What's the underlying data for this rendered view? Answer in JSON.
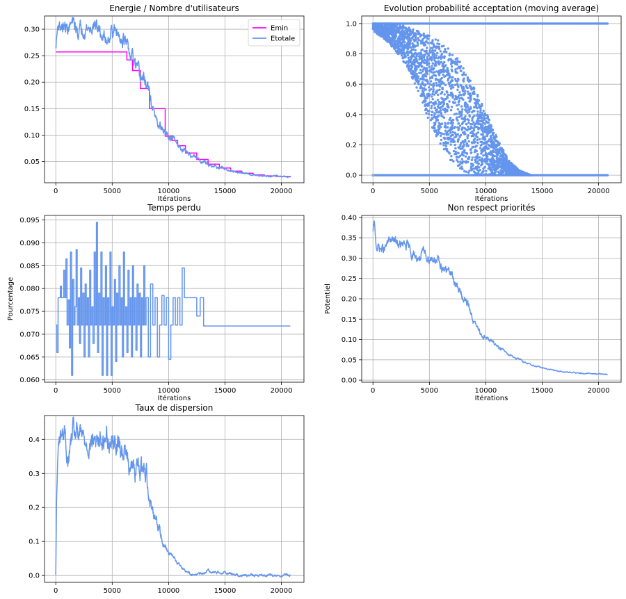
{
  "colors": {
    "emin": "#ff00ff",
    "etotale": "#6495ed",
    "series": "#6495ed",
    "grid": "#b0b0b0",
    "axes": "#000000"
  },
  "chart_data": [
    {
      "id": "energie",
      "type": "line",
      "title": "Energie / Nombre d'utilisateurs",
      "xlabel": "Itérations",
      "ylabel": "",
      "xlim": [
        -1000,
        22000
      ],
      "ylim": [
        0.01,
        0.325
      ],
      "xticks": [
        0,
        5000,
        10000,
        15000,
        20000
      ],
      "xtick_labels": [
        "0",
        "5000",
        "10000",
        "15000",
        "20000"
      ],
      "yticks": [
        0.05,
        0.1,
        0.15,
        0.2,
        0.25,
        0.3
      ],
      "ytick_labels": [
        "0.05",
        "0.10",
        "0.15",
        "0.20",
        "0.25",
        "0.30"
      ],
      "grid": true,
      "legend": "top-right",
      "legend_entries": [
        "Emin",
        "Etotale"
      ],
      "series": [
        {
          "name": "Emin",
          "color_key": "emin",
          "step": true,
          "x": [
            0,
            6200,
            6300,
            6800,
            7500,
            8300,
            9700,
            10300,
            10800,
            11500,
            12500,
            13500,
            14500,
            15500,
            16500,
            17500,
            18500,
            19500,
            20800
          ],
          "y": [
            0.257,
            0.257,
            0.242,
            0.222,
            0.188,
            0.15,
            0.098,
            0.09,
            0.08,
            0.066,
            0.054,
            0.045,
            0.038,
            0.032,
            0.028,
            0.025,
            0.023,
            0.022,
            0.021
          ]
        },
        {
          "name": "Etotale",
          "color_key": "etotale",
          "step": false,
          "noise": 0.009,
          "x": [
            0,
            200,
            500,
            1000,
            1500,
            2000,
            2500,
            3000,
            3500,
            4000,
            4500,
            5000,
            5500,
            6000,
            6300,
            6600,
            6900,
            7200,
            7500,
            7800,
            8100,
            8400,
            8700,
            9000,
            9300,
            9600,
            10000,
            10500,
            11000,
            12000,
            13000,
            14000,
            15000,
            16000,
            17000,
            18000,
            19000,
            20000,
            20800
          ],
          "y": [
            0.265,
            0.31,
            0.305,
            0.3,
            0.31,
            0.295,
            0.305,
            0.3,
            0.31,
            0.29,
            0.28,
            0.3,
            0.29,
            0.285,
            0.265,
            0.25,
            0.24,
            0.22,
            0.21,
            0.205,
            0.195,
            0.17,
            0.14,
            0.12,
            0.115,
            0.105,
            0.097,
            0.09,
            0.078,
            0.062,
            0.05,
            0.042,
            0.035,
            0.03,
            0.027,
            0.024,
            0.023,
            0.022,
            0.021
          ]
        }
      ]
    },
    {
      "id": "acceptation",
      "type": "scatter",
      "title": "Evolution probabilité acceptation (moving average)",
      "xlabel": "Itérations",
      "ylabel": "",
      "xlim": [
        -1000,
        22000
      ],
      "ylim": [
        -0.05,
        1.05
      ],
      "xticks": [
        0,
        5000,
        10000,
        15000,
        20000
      ],
      "xtick_labels": [
        "0",
        "5000",
        "10000",
        "15000",
        "20000"
      ],
      "yticks": [
        0.0,
        0.2,
        0.4,
        0.6,
        0.8,
        1.0
      ],
      "ytick_labels": [
        "0.0",
        "0.2",
        "0.4",
        "0.6",
        "0.8",
        "1.0"
      ],
      "grid": true,
      "lower_band_x": [
        0,
        1000,
        2000,
        3000,
        4000,
        5000,
        6000,
        7000,
        8000,
        9000,
        10000,
        11000,
        12000,
        13000
      ],
      "lower_band_y": [
        0.95,
        0.9,
        0.82,
        0.72,
        0.55,
        0.35,
        0.2,
        0.08,
        0.02,
        0.0,
        0.0,
        0.0,
        0.0,
        0.0
      ],
      "upper_band_x": [
        0,
        1000,
        2000,
        3000,
        4000,
        5000,
        6000,
        7000,
        8000,
        9000,
        10000,
        11000,
        12000,
        13000,
        14000
      ],
      "upper_band_y": [
        1.0,
        1.0,
        1.0,
        0.98,
        0.95,
        0.92,
        0.88,
        0.82,
        0.72,
        0.58,
        0.42,
        0.25,
        0.1,
        0.03,
        0.0
      ],
      "ones_line": {
        "y": 1.0,
        "x_from": 0,
        "x_to": 20800
      },
      "zeros_line": {
        "y": 0.0,
        "x_from": 0,
        "x_to": 20800
      }
    },
    {
      "id": "temps",
      "type": "line",
      "title": "Temps perdu",
      "xlabel": "Itérations",
      "ylabel": "Pourcentage",
      "xlim": [
        -1000,
        22000
      ],
      "ylim": [
        0.0595,
        0.096
      ],
      "xticks": [
        0,
        5000,
        10000,
        15000,
        20000
      ],
      "xtick_labels": [
        "0",
        "5000",
        "10000",
        "15000",
        "20000"
      ],
      "yticks": [
        0.06,
        0.065,
        0.07,
        0.075,
        0.08,
        0.085,
        0.09,
        0.095
      ],
      "ytick_labels": [
        "0.060",
        "0.065",
        "0.070",
        "0.075",
        "0.080",
        "0.085",
        "0.090",
        "0.095"
      ],
      "grid": true,
      "series": [
        {
          "name": "",
          "color_key": "series",
          "step": true,
          "x": [
            0,
            100,
            200,
            400,
            500,
            700,
            800,
            900,
            1000,
            1100,
            1200,
            1300,
            1400,
            1500,
            1600,
            1700,
            1800,
            1900,
            2000,
            2100,
            2200,
            2300,
            2400,
            2500,
            2600,
            2700,
            2800,
            2900,
            3000,
            3100,
            3200,
            3300,
            3400,
            3500,
            3600,
            3700,
            3800,
            3900,
            4000,
            4100,
            4200,
            4300,
            4400,
            4500,
            4600,
            4700,
            4800,
            4900,
            5000,
            5100,
            5200,
            5300,
            5400,
            5500,
            5600,
            5700,
            5800,
            5900,
            6000,
            6100,
            6200,
            6300,
            6400,
            6500,
            6600,
            6700,
            6800,
            6900,
            7000,
            7100,
            7200,
            7300,
            7400,
            7500,
            7600,
            7700,
            7800,
            7900,
            8000,
            8200,
            8400,
            8600,
            8800,
            9000,
            9200,
            9400,
            9600,
            9800,
            10000,
            10200,
            10400,
            10600,
            10800,
            11000,
            11200,
            11400,
            12200,
            12500,
            12800,
            13100,
            20800
          ],
          "y": [
            0.072,
            0.066,
            0.078,
            0.0805,
            0.078,
            0.084,
            0.078,
            0.0865,
            0.072,
            0.0775,
            0.067,
            0.088,
            0.061,
            0.082,
            0.072,
            0.076,
            0.0885,
            0.072,
            0.078,
            0.068,
            0.0845,
            0.072,
            0.079,
            0.065,
            0.081,
            0.072,
            0.078,
            0.065,
            0.084,
            0.072,
            0.076,
            0.068,
            0.088,
            0.072,
            0.0945,
            0.066,
            0.079,
            0.072,
            0.088,
            0.061,
            0.078,
            0.072,
            0.085,
            0.061,
            0.078,
            0.072,
            0.088,
            0.061,
            0.076,
            0.072,
            0.082,
            0.064,
            0.079,
            0.072,
            0.085,
            0.072,
            0.078,
            0.065,
            0.088,
            0.072,
            0.076,
            0.066,
            0.084,
            0.072,
            0.078,
            0.065,
            0.085,
            0.072,
            0.078,
            0.0665,
            0.081,
            0.072,
            0.079,
            0.065,
            0.078,
            0.072,
            0.085,
            0.072,
            0.078,
            0.065,
            0.081,
            0.072,
            0.078,
            0.065,
            0.072,
            0.0785,
            0.072,
            0.078,
            0.0645,
            0.072,
            0.078,
            0.072,
            0.078,
            0.072,
            0.0845,
            0.078,
            0.078,
            0.074,
            0.078,
            0.0718,
            0.0718
          ]
        }
      ]
    },
    {
      "id": "priorites",
      "type": "line",
      "title": "Non respect priorités",
      "xlabel": "Itérations",
      "ylabel": "Potentiel",
      "xlim": [
        -1000,
        22000
      ],
      "ylim": [
        -0.005,
        0.405
      ],
      "xticks": [
        0,
        5000,
        10000,
        15000,
        20000
      ],
      "xtick_labels": [
        "0",
        "5000",
        "10000",
        "15000",
        "20000"
      ],
      "yticks": [
        0.0,
        0.05,
        0.1,
        0.15,
        0.2,
        0.25,
        0.3,
        0.35,
        0.4
      ],
      "ytick_labels": [
        "0.00",
        "0.05",
        "0.10",
        "0.15",
        "0.20",
        "0.25",
        "0.30",
        "0.35",
        "0.40"
      ],
      "grid": true,
      "series": [
        {
          "name": "",
          "color_key": "series",
          "step": false,
          "noise": 0.008,
          "x": [
            0,
            100,
            300,
            600,
            1000,
            1500,
            2000,
            2500,
            3000,
            3500,
            4000,
            4500,
            5000,
            5500,
            6000,
            6500,
            7000,
            7500,
            8000,
            8500,
            9000,
            9500,
            10000,
            10500,
            11000,
            12000,
            13000,
            14000,
            15000,
            16000,
            17000,
            18000,
            19000,
            20000,
            20800
          ],
          "y": [
            0.36,
            0.385,
            0.33,
            0.325,
            0.32,
            0.345,
            0.34,
            0.33,
            0.33,
            0.31,
            0.3,
            0.31,
            0.3,
            0.3,
            0.28,
            0.27,
            0.26,
            0.225,
            0.205,
            0.18,
            0.14,
            0.115,
            0.105,
            0.095,
            0.085,
            0.065,
            0.05,
            0.038,
            0.03,
            0.024,
            0.02,
            0.018,
            0.016,
            0.015,
            0.014
          ]
        }
      ]
    },
    {
      "id": "dispersion",
      "type": "line",
      "title": "Taux de dispersion",
      "xlabel": "",
      "ylabel": "",
      "xlim": [
        -1000,
        22000
      ],
      "ylim": [
        -0.02,
        0.47
      ],
      "xticks": [
        0,
        5000,
        10000,
        15000,
        20000
      ],
      "xtick_labels": [
        "0",
        "5000",
        "10000",
        "15000",
        "20000"
      ],
      "yticks": [
        0.0,
        0.1,
        0.2,
        0.3,
        0.4
      ],
      "ytick_labels": [
        "0.0",
        "0.1",
        "0.2",
        "0.3",
        "0.4"
      ],
      "grid": true,
      "series": [
        {
          "name": "",
          "color_key": "series",
          "step": false,
          "noise": 0.022,
          "x": [
            0,
            60,
            150,
            300,
            500,
            800,
            1100,
            1500,
            2000,
            2500,
            3000,
            3500,
            4000,
            4500,
            5000,
            5500,
            6000,
            6500,
            7000,
            7500,
            8000,
            8500,
            9000,
            9500,
            10000,
            10500,
            11000,
            11500,
            12000,
            12500,
            13000,
            13500,
            14000,
            15000,
            16000,
            17000,
            18000,
            19000,
            20000,
            20800
          ],
          "y": [
            0.0,
            0.2,
            0.32,
            0.4,
            0.42,
            0.41,
            0.33,
            0.42,
            0.41,
            0.4,
            0.39,
            0.4,
            0.39,
            0.41,
            0.4,
            0.38,
            0.37,
            0.34,
            0.3,
            0.32,
            0.31,
            0.2,
            0.16,
            0.1,
            0.07,
            0.05,
            0.03,
            0.015,
            0.005,
            0.003,
            0.005,
            0.015,
            0.01,
            0.01,
            0.002,
            0.0,
            0.0,
            0.0,
            0.0,
            0.0
          ]
        }
      ]
    }
  ]
}
